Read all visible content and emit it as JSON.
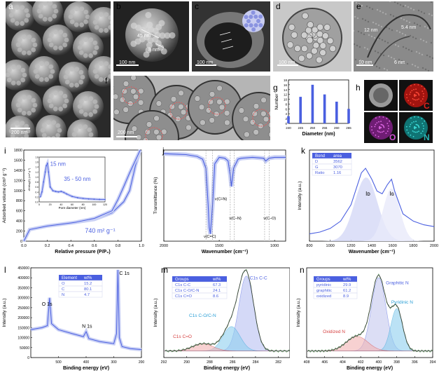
{
  "panels": {
    "a": {
      "label": "a",
      "scale": "200 nm"
    },
    "b": {
      "label": "b",
      "scale": "100 nm",
      "annot1": "45 nm",
      "annot2": "8 nm"
    },
    "c": {
      "label": "c",
      "scale": "100 nm"
    },
    "d": {
      "label": "d",
      "scale": "100 nm"
    },
    "e": {
      "label": "e",
      "scale": "10 nm",
      "annot1": "12 nm",
      "annot2": "5.4 nm",
      "annot3": "6 nm"
    },
    "f": {
      "label": "f",
      "scale": "200 nm"
    },
    "g": {
      "label": "g"
    },
    "h": {
      "label": "h",
      "c": "C",
      "o": "O",
      "n": "N"
    },
    "i": {
      "label": "i"
    },
    "j": {
      "label": "j"
    },
    "k": {
      "label": "k"
    },
    "l": {
      "label": "l"
    },
    "m": {
      "label": "m"
    },
    "n": {
      "label": "n"
    }
  },
  "colors": {
    "series": "#4a5fe0",
    "band": "#c9d0f5",
    "carbon": "#e0201b",
    "oxygen": "#b431b8",
    "nitrogen": "#27b4b4"
  },
  "chart_data": [
    {
      "id": "g",
      "type": "bar",
      "xlabel": "Diameter (nm)",
      "ylabel": "Number",
      "categories": [
        "240",
        "245",
        "250",
        "255",
        "260",
        "265"
      ],
      "values": [
        3,
        11,
        16,
        12,
        9,
        6
      ],
      "ylim": [
        0,
        18
      ],
      "yticks": [
        "0",
        "2",
        "4",
        "6",
        "8",
        "10",
        "12",
        "14",
        "16",
        "18"
      ]
    },
    {
      "id": "i",
      "type": "line",
      "xlabel": "Relative pressure (P/P₀)",
      "ylabel": "Adsorbed volume (cm³ g⁻¹)",
      "xlim": [
        0,
        1.0
      ],
      "ylim": [
        0,
        1800
      ],
      "xticks": [
        "0.0",
        "0.2",
        "0.4",
        "0.6",
        "0.8",
        "1.0"
      ],
      "yticks": [
        "0",
        "200",
        "400",
        "600",
        "800",
        "1000",
        "1200",
        "1400",
        "1600",
        "1800"
      ],
      "annotation": "740 m² g⁻¹",
      "series": [
        {
          "x": [
            0.0,
            0.05,
            0.2,
            0.4,
            0.6,
            0.75,
            0.85,
            0.9,
            0.95,
            0.99
          ],
          "y": [
            0,
            230,
            300,
            360,
            430,
            560,
            780,
            1000,
            1500,
            1800
          ]
        },
        {
          "x": [
            0.99,
            0.95,
            0.9,
            0.85,
            0.8,
            0.75,
            0.6,
            0.45
          ],
          "y": [
            1800,
            1600,
            1350,
            1080,
            820,
            600,
            450,
            380
          ]
        }
      ],
      "inset": {
        "xlabel": "Pore diameter (nm)",
        "ylabel": "dV/dlog(D) (cm³ g⁻¹)",
        "xlim": [
          0,
          120
        ],
        "ylim": [
          0,
          1.8
        ],
        "xticks": [
          "0",
          "20",
          "40",
          "60",
          "80",
          "100",
          "120"
        ],
        "yticks": [
          "0.0",
          "0.2",
          "0.4",
          "0.6",
          "0.8",
          "1.0",
          "1.2",
          "1.4",
          "1.6",
          "1.8"
        ],
        "annotation1": "15 nm",
        "annotation2": "35 - 50 nm",
        "x": [
          2,
          5,
          8,
          11,
          13,
          15,
          17,
          20,
          25,
          30,
          35,
          40,
          45,
          50,
          60,
          70,
          80,
          90,
          100,
          110,
          120
        ],
        "y": [
          0.2,
          0.4,
          0.8,
          1.2,
          1.45,
          1.55,
          1.2,
          0.6,
          0.45,
          0.42,
          0.4,
          0.42,
          0.38,
          0.32,
          0.22,
          0.17,
          0.14,
          0.12,
          0.11,
          0.1,
          0.1
        ]
      }
    },
    {
      "id": "j",
      "type": "line",
      "xlabel": "Wavenumber (cm⁻¹)",
      "ylabel": "Transmittance (%)",
      "xlim": [
        2000,
        900
      ],
      "xticks": [
        "2000",
        "1500",
        "1000"
      ],
      "annotations": [
        "ν(C=C)",
        "ν(C=N)",
        "ν(C–N)",
        "ν(C–O)"
      ],
      "series": [
        {
          "x": [
            2000,
            1800,
            1700,
            1650,
            1620,
            1600,
            1590,
            1580,
            1560,
            1540,
            1500,
            1450,
            1420,
            1400,
            1390,
            1370,
            1330,
            1300,
            1200,
            1100,
            1080,
            1050,
            1000,
            950,
            900
          ],
          "y": [
            96,
            95,
            93,
            90,
            80,
            40,
            15,
            8,
            40,
            85,
            92,
            91,
            88,
            72,
            60,
            80,
            90,
            91,
            92,
            91,
            88,
            91,
            92,
            92,
            92
          ]
        }
      ]
    },
    {
      "id": "k",
      "type": "line",
      "xlabel": "Wavenumber (cm⁻¹)",
      "ylabel": "Intensity (a.u.)",
      "xlim": [
        800,
        2000
      ],
      "xticks": [
        "800",
        "1000",
        "1200",
        "1400",
        "1600",
        "1800",
        "2000"
      ],
      "peak_labels": [
        "Iᴅ",
        "Iɢ"
      ],
      "table": {
        "headers": [
          "Bond",
          "area"
        ],
        "rows": [
          [
            "D",
            "3562"
          ],
          [
            "G",
            "3070"
          ],
          [
            "Ratio",
            "1.16"
          ]
        ]
      },
      "series": [
        {
          "x": [
            800,
            900,
            1000,
            1100,
            1200,
            1300,
            1340,
            1400,
            1450,
            1500,
            1550,
            1590,
            1620,
            1700,
            1800,
            1900,
            2000
          ],
          "y": [
            8,
            10,
            14,
            22,
            40,
            75,
            80,
            68,
            55,
            52,
            62,
            68,
            55,
            30,
            22,
            18,
            16
          ]
        }
      ]
    },
    {
      "id": "l",
      "type": "line",
      "xlabel": "Binding energy (eV)",
      "ylabel": "Intensity (a.u.)",
      "xlim": [
        600,
        200
      ],
      "ylim": [
        0,
        450000
      ],
      "xticks": [
        "500",
        "400",
        "300",
        "200"
      ],
      "yticks": [
        "0",
        "50000",
        "100000",
        "150000",
        "200000",
        "250000",
        "300000",
        "350000",
        "400000",
        "450000"
      ],
      "peak_labels": [
        "O 1s",
        "N 1s",
        "C 1s"
      ],
      "table": {
        "headers": [
          "Element",
          "wt%"
        ],
        "rows": [
          [
            "O",
            "15.2"
          ],
          [
            "C",
            "80.1"
          ],
          [
            "N",
            "4.7"
          ]
        ]
      },
      "series": [
        {
          "x": [
            600,
            560,
            540,
            532,
            525,
            500,
            450,
            410,
            400,
            390,
            350,
            300,
            290,
            285,
            280,
            270,
            240,
            200
          ],
          "y": [
            140000,
            150000,
            160000,
            300000,
            170000,
            140000,
            120000,
            105000,
            130000,
            95000,
            80000,
            70000,
            120000,
            440000,
            100000,
            55000,
            45000,
            40000
          ]
        }
      ]
    },
    {
      "id": "m",
      "type": "area",
      "xlabel": "Binding energy (eV)",
      "ylabel": "Intensity (a.u.)",
      "xlim": [
        292,
        281
      ],
      "xticks": [
        "292",
        "290",
        "288",
        "286",
        "284",
        "282"
      ],
      "peak_labels": [
        "C1s C-C",
        "C1s C-O/C-N",
        "C1s C=O"
      ],
      "table": {
        "headers": [
          "Groups",
          "wt%"
        ],
        "rows": [
          [
            "C1s C-C",
            "67.3"
          ],
          [
            "C1s C-O/C-N",
            "24.1"
          ],
          [
            "C1s C=O",
            "8.6"
          ]
        ]
      }
    },
    {
      "id": "n",
      "type": "area",
      "xlabel": "Binding energy (eV)",
      "ylabel": "Intensity (a.u.)",
      "xlim": [
        408,
        394
      ],
      "xticks": [
        "408",
        "406",
        "404",
        "402",
        "400",
        "398",
        "396",
        "394"
      ],
      "peak_labels": [
        "Graphitic N",
        "Pyridinic N",
        "Oxidized N"
      ],
      "table": {
        "headers": [
          "Groups",
          "wt%"
        ],
        "rows": [
          [
            "pyridinic",
            "29.9"
          ],
          [
            "graphitic",
            "61.2"
          ],
          [
            "oxidized",
            "8.9"
          ]
        ]
      }
    }
  ]
}
